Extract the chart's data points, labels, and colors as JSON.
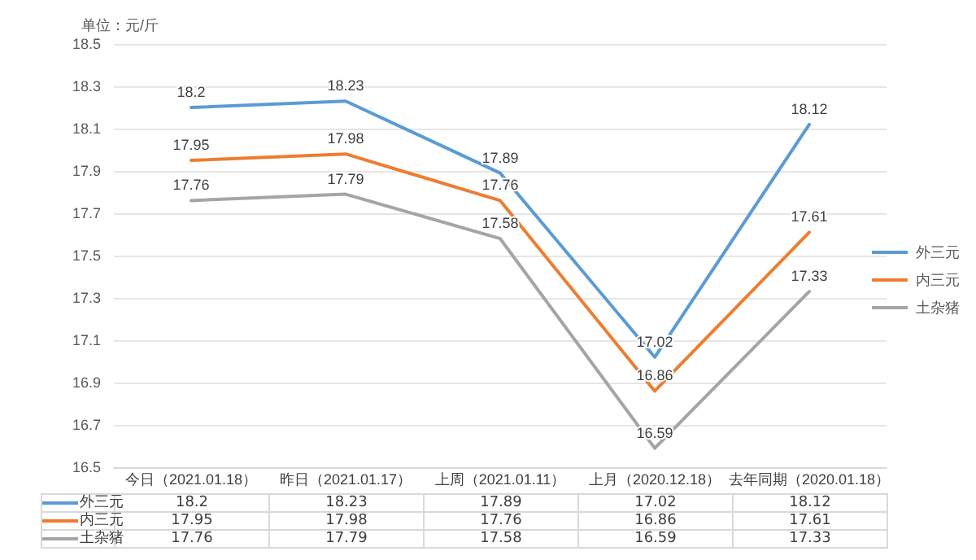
{
  "chart_data": {
    "type": "line",
    "ylabel": "单位：元/斤",
    "categories": [
      "今日（2021.01.18）",
      "昨日（2021.01.17）",
      "上周（2021.01.11）",
      "上月（2020.12.18）",
      "去年同期（2020.01.18）"
    ],
    "series": [
      {
        "name": "外三元",
        "color": "#5b9bd5",
        "values": [
          18.2,
          18.23,
          17.89,
          17.02,
          18.12
        ],
        "value_labels": [
          "18.2",
          "18.23",
          "17.89",
          "17.02",
          "18.12"
        ]
      },
      {
        "name": "内三元",
        "color": "#ed7d31",
        "values": [
          17.95,
          17.98,
          17.76,
          16.86,
          17.61
        ],
        "value_labels": [
          "17.95",
          "17.98",
          "17.76",
          "16.86",
          "17.61"
        ]
      },
      {
        "name": "土杂猪",
        "color": "#a5a5a5",
        "values": [
          17.76,
          17.79,
          17.58,
          16.59,
          17.33
        ],
        "value_labels": [
          "17.76",
          "17.79",
          "17.58",
          "16.59",
          "17.33"
        ]
      }
    ],
    "ylim": [
      16.5,
      18.5
    ],
    "yticks": [
      16.5,
      16.7,
      16.9,
      17.1,
      17.3,
      17.5,
      17.7,
      17.9,
      18.1,
      18.3,
      18.5
    ],
    "annotations": [
      "18.2",
      "18.23",
      "17.89",
      "17.02",
      "18.12",
      "17.95",
      "17.98",
      "17.76",
      "16.86",
      "17.61",
      "17.76",
      "17.79",
      "17.58",
      "16.59",
      "17.33"
    ],
    "grid": "y",
    "legend": "right",
    "marker": "none",
    "line_style": "solid"
  }
}
